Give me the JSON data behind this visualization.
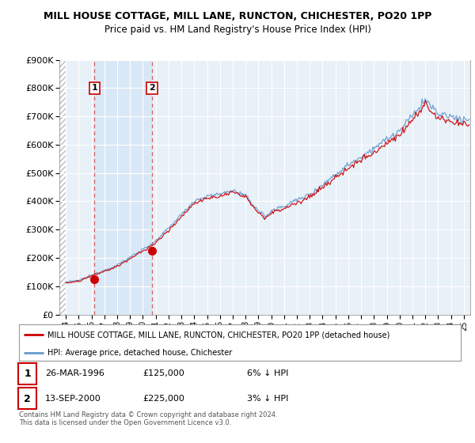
{
  "title1": "MILL HOUSE COTTAGE, MILL LANE, RUNCTON, CHICHESTER, PO20 1PP",
  "title2": "Price paid vs. HM Land Registry's House Price Index (HPI)",
  "legend_line1": "MILL HOUSE COTTAGE, MILL LANE, RUNCTON, CHICHESTER, PO20 1PP (detached house)",
  "legend_line2": "HPI: Average price, detached house, Chichester",
  "annotation1_date": "26-MAR-1996",
  "annotation1_price": "£125,000",
  "annotation1_hpi": "6% ↓ HPI",
  "annotation2_date": "13-SEP-2000",
  "annotation2_price": "£225,000",
  "annotation2_hpi": "3% ↓ HPI",
  "footnote": "Contains HM Land Registry data © Crown copyright and database right 2024.\nThis data is licensed under the Open Government Licence v3.0.",
  "red_color": "#cc0000",
  "blue_color": "#6699cc",
  "background_plot": "#e8f0f8",
  "background_fig": "#ffffff",
  "hatch_color": "#cccccc",
  "highlight_color": "#d0e4f5",
  "ylim": [
    0,
    900000
  ],
  "yticks": [
    0,
    100000,
    200000,
    300000,
    400000,
    500000,
    600000,
    700000,
    800000,
    900000
  ],
  "ytick_labels": [
    "£0",
    "£100K",
    "£200K",
    "£300K",
    "£400K",
    "£500K",
    "£600K",
    "£700K",
    "£800K",
    "£900K"
  ],
  "sale1_year": 1996.23,
  "sale1_price": 125000,
  "sale2_year": 2000.71,
  "sale2_price": 225000,
  "xmin": 1994,
  "xmax": 2025
}
